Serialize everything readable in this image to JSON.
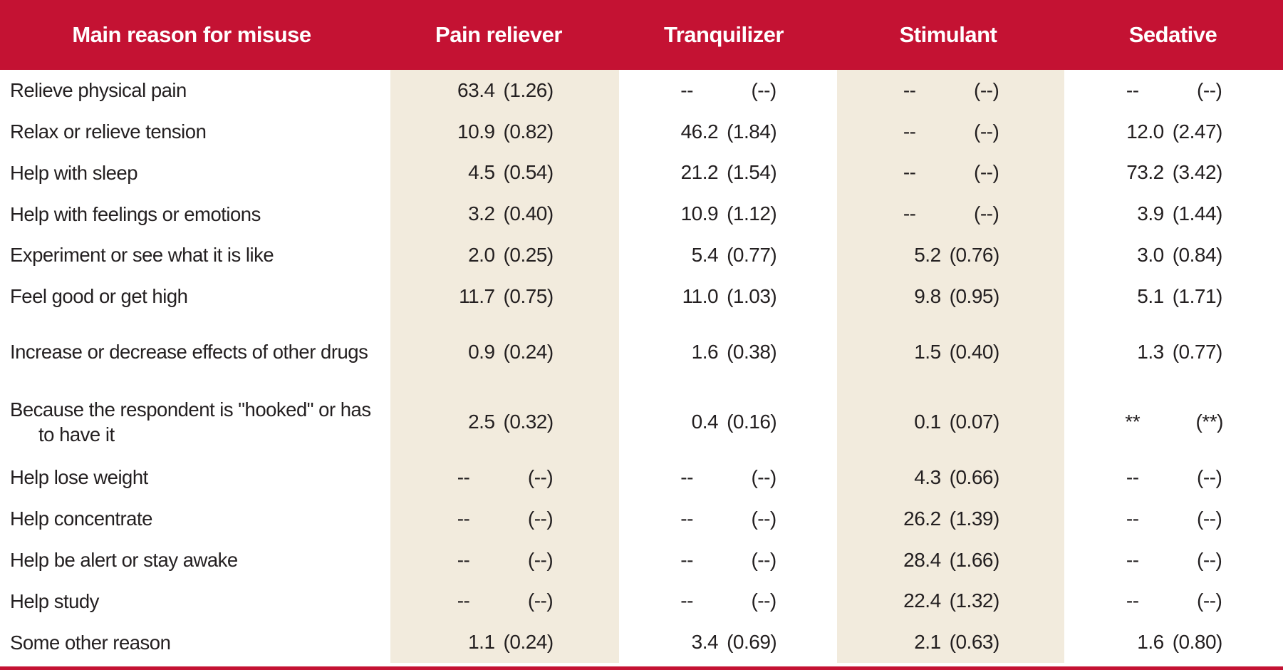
{
  "table": {
    "colors": {
      "header_red": "#C41233",
      "band_beige": "#F2EBDD",
      "text": "#231F20",
      "header_text": "#FFFFFF"
    },
    "columns": [
      "Main reason for misuse",
      "Pain reliever",
      "Tranquilizer",
      "Stimulant",
      "Sedative"
    ],
    "rows": [
      {
        "label": "Relieve physical pain",
        "pain_reliever": {
          "value": "63.4",
          "se": "(1.26)"
        },
        "tranquilizer": {
          "value": "--",
          "se": "(--)"
        },
        "stimulant": {
          "value": "--",
          "se": "(--)"
        },
        "sedative": {
          "value": "--",
          "se": "(--)"
        }
      },
      {
        "label": "Relax or relieve tension",
        "pain_reliever": {
          "value": "10.9",
          "se": "(0.82)"
        },
        "tranquilizer": {
          "value": "46.2",
          "se": "(1.84)"
        },
        "stimulant": {
          "value": "--",
          "se": "(--)"
        },
        "sedative": {
          "value": "12.0",
          "se": "(2.47)"
        }
      },
      {
        "label": "Help with sleep",
        "pain_reliever": {
          "value": "4.5",
          "se": "(0.54)"
        },
        "tranquilizer": {
          "value": "21.2",
          "se": "(1.54)"
        },
        "stimulant": {
          "value": "--",
          "se": "(--)"
        },
        "sedative": {
          "value": "73.2",
          "se": "(3.42)"
        }
      },
      {
        "label": "Help with feelings or emotions",
        "pain_reliever": {
          "value": "3.2",
          "se": "(0.40)"
        },
        "tranquilizer": {
          "value": "10.9",
          "se": "(1.12)"
        },
        "stimulant": {
          "value": "--",
          "se": "(--)"
        },
        "sedative": {
          "value": "3.9",
          "se": "(1.44)"
        }
      },
      {
        "label": "Experiment or see what it is like",
        "pain_reliever": {
          "value": "2.0",
          "se": "(0.25)"
        },
        "tranquilizer": {
          "value": "5.4",
          "se": "(0.77)"
        },
        "stimulant": {
          "value": "5.2",
          "se": "(0.76)"
        },
        "sedative": {
          "value": "3.0",
          "se": "(0.84)"
        }
      },
      {
        "label": "Feel good or get high",
        "pain_reliever": {
          "value": "11.7",
          "se": "(0.75)"
        },
        "tranquilizer": {
          "value": "11.0",
          "se": "(1.03)"
        },
        "stimulant": {
          "value": "9.8",
          "se": "(0.95)"
        },
        "sedative": {
          "value": "5.1",
          "se": "(1.71)"
        }
      },
      {
        "label": "Increase or decrease effects of other drugs",
        "pain_reliever": {
          "value": "0.9",
          "se": "(0.24)"
        },
        "tranquilizer": {
          "value": "1.6",
          "se": "(0.38)"
        },
        "stimulant": {
          "value": "1.5",
          "se": "(0.40)"
        },
        "sedative": {
          "value": "1.3",
          "se": "(0.77)"
        }
      },
      {
        "label": "Because the respondent is \"hooked\" or has to have it",
        "pain_reliever": {
          "value": "2.5",
          "se": "(0.32)"
        },
        "tranquilizer": {
          "value": "0.4",
          "se": "(0.16)"
        },
        "stimulant": {
          "value": "0.1",
          "se": "(0.07)"
        },
        "sedative": {
          "value": "**",
          "se": "(**)"
        }
      },
      {
        "label": "Help lose weight",
        "pain_reliever": {
          "value": "--",
          "se": "(--)"
        },
        "tranquilizer": {
          "value": "--",
          "se": "(--)"
        },
        "stimulant": {
          "value": "4.3",
          "se": "(0.66)"
        },
        "sedative": {
          "value": "--",
          "se": "(--)"
        }
      },
      {
        "label": "Help concentrate",
        "pain_reliever": {
          "value": "--",
          "se": "(--)"
        },
        "tranquilizer": {
          "value": "--",
          "se": "(--)"
        },
        "stimulant": {
          "value": "26.2",
          "se": "(1.39)"
        },
        "sedative": {
          "value": "--",
          "se": "(--)"
        }
      },
      {
        "label": "Help be alert or stay awake",
        "pain_reliever": {
          "value": "--",
          "se": "(--)"
        },
        "tranquilizer": {
          "value": "--",
          "se": "(--)"
        },
        "stimulant": {
          "value": "28.4",
          "se": "(1.66)"
        },
        "sedative": {
          "value": "--",
          "se": "(--)"
        }
      },
      {
        "label": "Help study",
        "pain_reliever": {
          "value": "--",
          "se": "(--)"
        },
        "tranquilizer": {
          "value": "--",
          "se": "(--)"
        },
        "stimulant": {
          "value": "22.4",
          "se": "(1.32)"
        },
        "sedative": {
          "value": "--",
          "se": "(--)"
        }
      },
      {
        "label": "Some other reason",
        "pain_reliever": {
          "value": "1.1",
          "se": "(0.24)"
        },
        "tranquilizer": {
          "value": "3.4",
          "se": "(0.69)"
        },
        "stimulant": {
          "value": "2.1",
          "se": "(0.63)"
        },
        "sedative": {
          "value": "1.6",
          "se": "(0.80)"
        }
      }
    ]
  }
}
